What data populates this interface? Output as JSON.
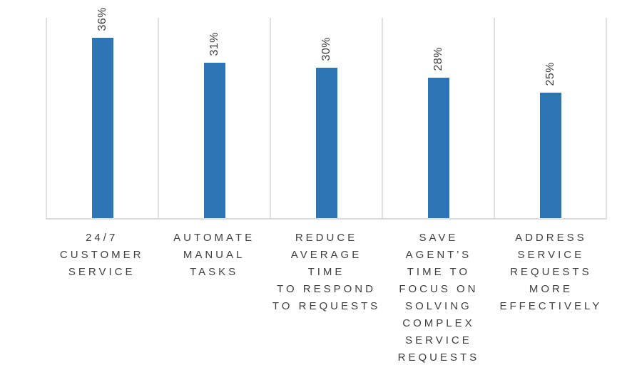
{
  "chart_data": {
    "type": "bar",
    "title": "",
    "xlabel": "",
    "ylabel": "",
    "categories": [
      "24/7 Customer Service",
      "Automate Manual Tasks",
      "Reduce Average Time to Respond to Requests",
      "Save Agent's Time to Focus on Solving Complex Service Requests",
      "Address Service Requests More Effectively"
    ],
    "values": [
      36,
      31,
      30,
      28,
      25
    ],
    "value_labels": [
      "36%",
      "31%",
      "30%",
      "28%",
      "25%"
    ],
    "ylim": [
      0,
      40
    ],
    "y_axis_visible": false,
    "legend": "none",
    "grid": "vertical category separators only",
    "value_label_rotation_deg": 90,
    "bar_color": "#2e75b6"
  },
  "bars": [
    {
      "value_label": "36%",
      "category_label": "24/7\nCUSTOMER\nSERVICE"
    },
    {
      "value_label": "31%",
      "category_label": "AUTOMATE\nMANUAL\nTASKS"
    },
    {
      "value_label": "30%",
      "category_label": "REDUCE\nAVERAGE TIME\nTO RESPOND\nTO REQUESTS"
    },
    {
      "value_label": "28%",
      "category_label": "SAVE AGENT'S\nTIME TO\nFOCUS ON\nSOLVING\nCOMPLEX\nSERVICE\nREQUESTS"
    },
    {
      "value_label": "25%",
      "category_label": "ADDRESS\nSERVICE\nREQUESTS\nMORE\nEFFECTIVELY"
    }
  ],
  "colors": {
    "bar": "#2e75b6",
    "gridline": "#e0e0e0",
    "axis_line": "#dcdcdc",
    "label_text": "#404040"
  }
}
